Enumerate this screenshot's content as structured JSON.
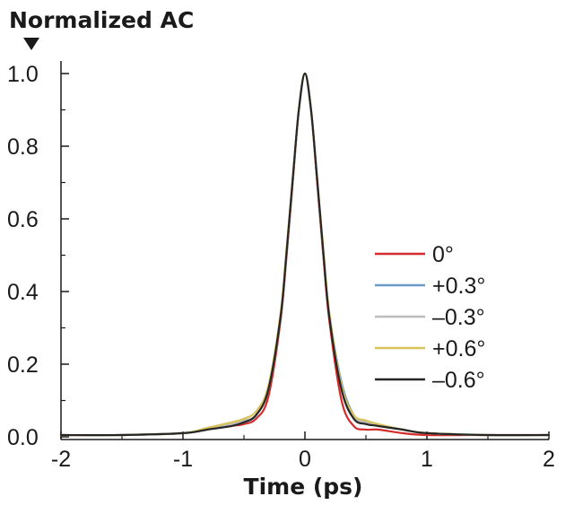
{
  "chart_data": {
    "type": "line",
    "title": "",
    "ylabel": "Normalized AC",
    "xlabel": "Time (ps)",
    "xlim": [
      -2,
      2
    ],
    "ylim": [
      0,
      1
    ],
    "xticks": [
      "-2",
      "-1",
      "0",
      "1",
      "2"
    ],
    "yticks": [
      "0.0",
      "0.2",
      "0.4",
      "0.6",
      "0.8",
      "1.0"
    ],
    "grid": false,
    "legend_position": "right",
    "x": [
      -2.0,
      -1.5,
      -1.0,
      -0.8,
      -0.6,
      -0.5,
      -0.4,
      -0.3,
      -0.2,
      -0.15,
      -0.1,
      -0.05,
      0.0,
      0.05,
      0.1,
      0.15,
      0.2,
      0.3,
      0.4,
      0.5,
      0.6,
      0.8,
      1.0,
      1.5,
      2.0
    ],
    "series": [
      {
        "name": "0°",
        "color": "#d62b2b",
        "values": [
          0.005,
          0.005,
          0.01,
          0.02,
          0.03,
          0.035,
          0.05,
          0.11,
          0.32,
          0.5,
          0.7,
          0.9,
          1.0,
          0.9,
          0.7,
          0.5,
          0.32,
          0.1,
          0.03,
          0.02,
          0.02,
          0.01,
          0.005,
          0.005,
          0.005
        ]
      },
      {
        "name": "+0.3°",
        "color": "#6a9bc8",
        "values": [
          0.005,
          0.005,
          0.01,
          0.02,
          0.035,
          0.04,
          0.06,
          0.13,
          0.33,
          0.51,
          0.71,
          0.9,
          1.0,
          0.9,
          0.71,
          0.51,
          0.34,
          0.15,
          0.06,
          0.04,
          0.03,
          0.02,
          0.01,
          0.005,
          0.005
        ]
      },
      {
        "name": "–0.3°",
        "color": "#bdbdbd",
        "values": [
          0.005,
          0.005,
          0.01,
          0.02,
          0.035,
          0.045,
          0.06,
          0.13,
          0.33,
          0.51,
          0.71,
          0.9,
          1.0,
          0.9,
          0.71,
          0.51,
          0.34,
          0.14,
          0.055,
          0.04,
          0.03,
          0.02,
          0.01,
          0.005,
          0.005
        ]
      },
      {
        "name": "+0.6°",
        "color": "#d8c25a",
        "values": [
          0.005,
          0.005,
          0.01,
          0.025,
          0.04,
          0.05,
          0.07,
          0.14,
          0.34,
          0.52,
          0.71,
          0.9,
          1.0,
          0.9,
          0.71,
          0.52,
          0.34,
          0.14,
          0.06,
          0.045,
          0.035,
          0.02,
          0.01,
          0.005,
          0.005
        ]
      },
      {
        "name": "–0.6°",
        "color": "#262626",
        "values": [
          0.005,
          0.005,
          0.01,
          0.02,
          0.03,
          0.04,
          0.06,
          0.13,
          0.33,
          0.51,
          0.71,
          0.9,
          1.0,
          0.9,
          0.71,
          0.51,
          0.33,
          0.13,
          0.05,
          0.035,
          0.03,
          0.02,
          0.01,
          0.005,
          0.005
        ]
      }
    ]
  }
}
